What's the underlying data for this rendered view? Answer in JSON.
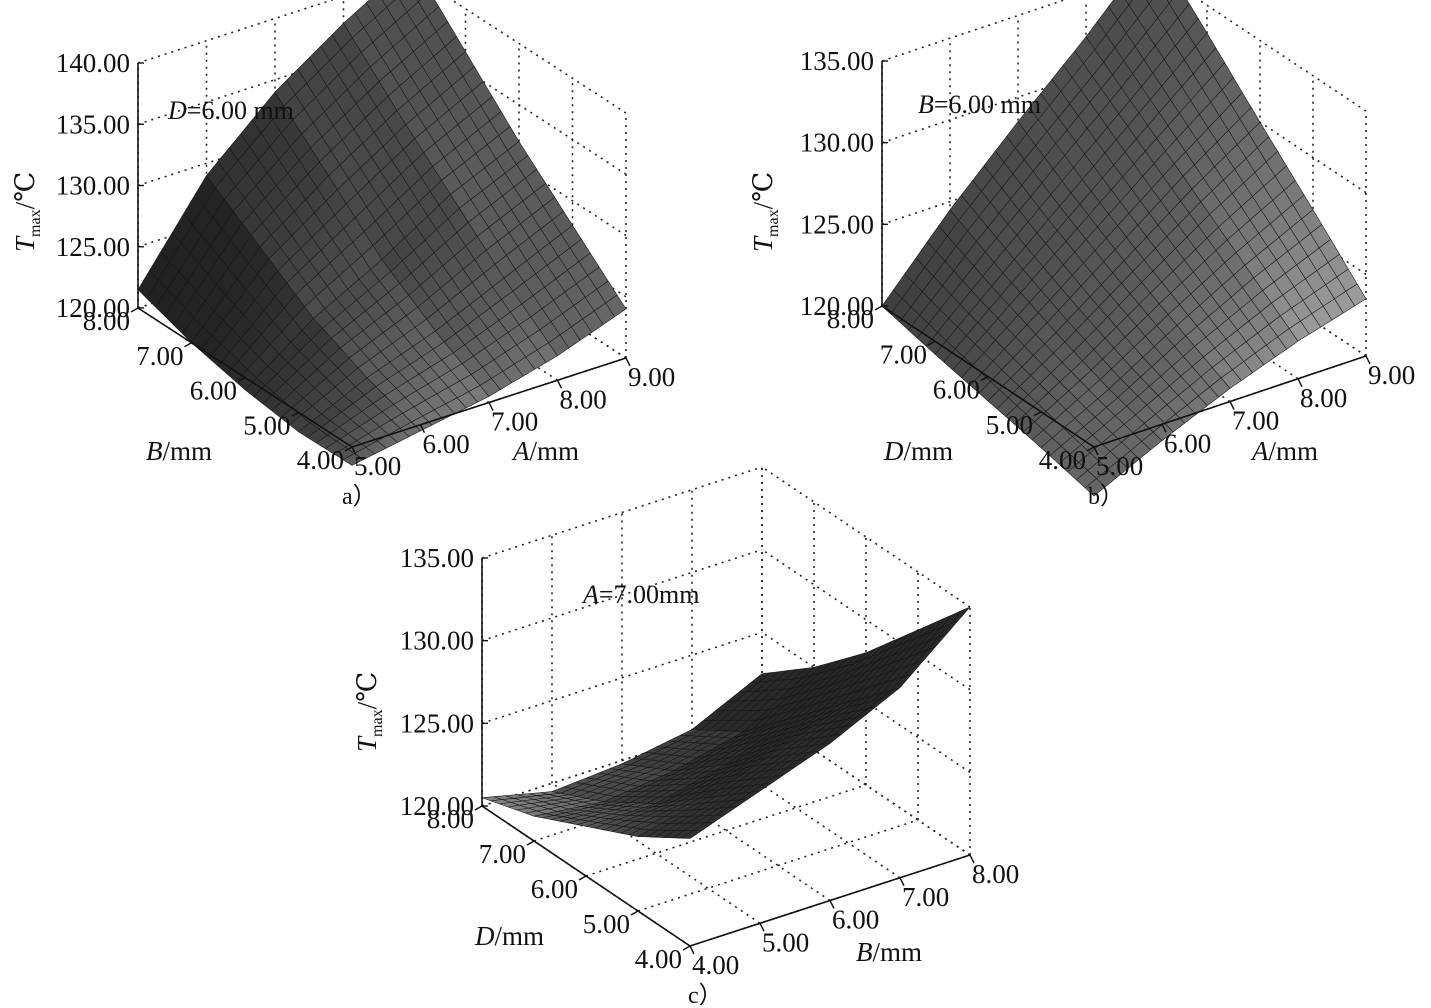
{
  "figure": {
    "y_axis_label": "T_max/℃",
    "y_axis_main": "T",
    "y_axis_sub": "max",
    "y_axis_unit": "/℃"
  },
  "chart_data": [
    {
      "type": "surface",
      "caption": "a）",
      "condition": "D=6.00 mm",
      "condition_var": "D",
      "condition_text": "=6.00 mm",
      "z_label": "T_max/℃",
      "z_ticks": [
        "120.00",
        "125.00",
        "130.00",
        "135.00",
        "140.00"
      ],
      "z_range": [
        120,
        140
      ],
      "front_axis": {
        "var": "A",
        "unit": "/mm",
        "range": [
          5,
          9
        ],
        "ticks": [
          "5.00",
          "6.00",
          "7.00",
          "8.00",
          "9.00"
        ]
      },
      "side_axis": {
        "var": "B",
        "unit": "/mm",
        "range": [
          4,
          8
        ],
        "ticks": [
          "4.00",
          "5.00",
          "6.00",
          "7.00",
          "8.00"
        ]
      },
      "shading": "dark",
      "surface_grid": {
        "u_values": [
          5,
          6,
          7,
          8,
          9
        ],
        "v_values": [
          4,
          5,
          6,
          7,
          8
        ],
        "z": [
          [
            118.5,
            118.4,
            119.0,
            120.0,
            121.5
          ],
          [
            119.5,
            121.0,
            123.0,
            126.0,
            129.0
          ],
          [
            120.5,
            123.0,
            126.0,
            130.0,
            134.0
          ],
          [
            122.0,
            125.5,
            129.5,
            133.5,
            137.8
          ],
          [
            124.0,
            128.0,
            132.0,
            136.5,
            141.0
          ]
        ]
      }
    },
    {
      "type": "surface",
      "caption": "b）",
      "condition": "B=6.00 mm",
      "condition_var": "B",
      "condition_text": "=6.00 mm",
      "z_label": "T_max/℃",
      "z_ticks": [
        "120.00",
        "125.00",
        "130.00",
        "135.00"
      ],
      "z_range": [
        120,
        135
      ],
      "front_axis": {
        "var": "A",
        "unit": "/mm",
        "range": [
          5,
          9
        ],
        "ticks": [
          "5.00",
          "6.00",
          "7.00",
          "8.00",
          "9.00"
        ]
      },
      "side_axis": {
        "var": "D",
        "unit": "/mm",
        "range": [
          4,
          8
        ],
        "ticks": [
          "4.00",
          "5.00",
          "6.00",
          "7.00",
          "8.00"
        ]
      },
      "shading": "light",
      "surface_grid": {
        "u_values": [
          5,
          6,
          7,
          8,
          9
        ],
        "v_values": [
          4,
          5,
          6,
          7,
          8
        ],
        "z": [
          [
            117.0,
            117.8,
            118.5,
            119.2,
            120.0
          ],
          [
            119.0,
            120.0,
            121.3,
            122.8,
            124.5
          ],
          [
            120.8,
            122.5,
            124.3,
            126.3,
            128.5
          ],
          [
            122.3,
            124.8,
            127.3,
            129.8,
            132.3
          ],
          [
            123.5,
            126.8,
            130.0,
            133.3,
            136.5
          ]
        ]
      }
    },
    {
      "type": "surface",
      "caption": "c）",
      "condition": "A=7.00mm",
      "condition_var": "A",
      "condition_text": "=7.00mm",
      "z_label": "T_max/℃",
      "z_ticks": [
        "120.00",
        "125.00",
        "130.00",
        "135.00"
      ],
      "z_range": [
        120,
        135
      ],
      "front_axis": {
        "var": "B",
        "unit": "/mm",
        "range": [
          4,
          8
        ],
        "ticks": [
          "4.00",
          "5.00",
          "6.00",
          "7.00",
          "8.00"
        ]
      },
      "side_axis": {
        "var": "D",
        "unit": "/mm",
        "range": [
          4,
          8
        ],
        "ticks": [
          "4.00",
          "5.00",
          "6.00",
          "7.00",
          "8.00"
        ]
      },
      "shading": "medium",
      "surface_grid": {
        "u_values": [
          4,
          5,
          6,
          7,
          8
        ],
        "v_values": [
          4,
          5,
          6,
          7,
          8
        ],
        "z": [
          [
            126.5,
            124.5,
            123.0,
            121.5,
            120.5
          ],
          [
            128.0,
            125.5,
            123.0,
            121.0,
            119.5
          ],
          [
            129.5,
            127.0,
            124.0,
            121.5,
            119.8
          ],
          [
            131.5,
            128.5,
            125.5,
            122.5,
            120.5
          ],
          [
            135.0,
            131.5,
            128.0,
            125.0,
            122.5
          ]
        ]
      }
    }
  ]
}
